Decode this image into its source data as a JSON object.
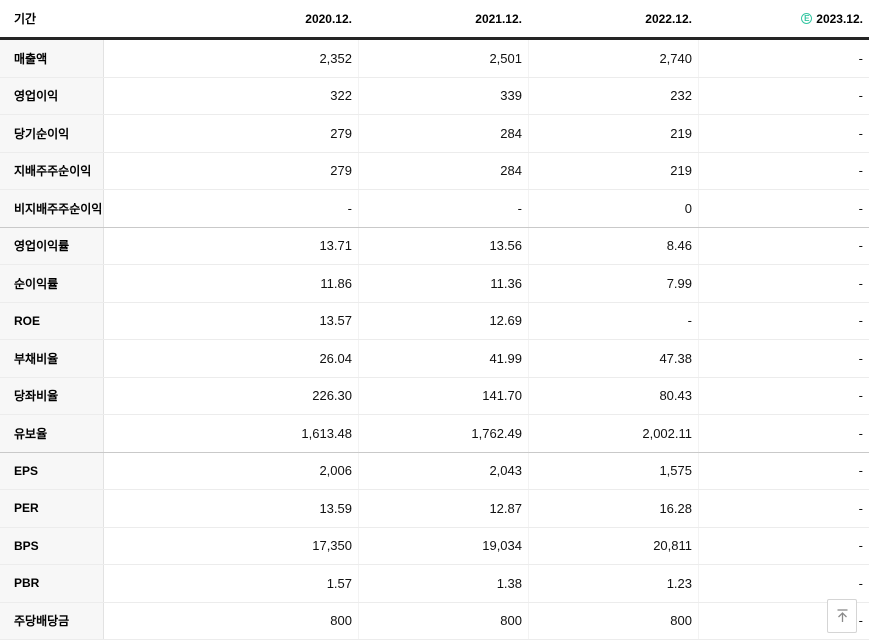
{
  "header": {
    "period_label": "기간",
    "estimate_badge": "E",
    "columns": [
      {
        "label": "2020.12.",
        "estimate": false
      },
      {
        "label": "2021.12.",
        "estimate": false
      },
      {
        "label": "2022.12.",
        "estimate": false
      },
      {
        "label": "2023.12.",
        "estimate": true
      }
    ]
  },
  "table": {
    "rows": [
      {
        "label": "매출액",
        "values": [
          "2,352",
          "2,501",
          "2,740",
          "-"
        ],
        "group_end": false
      },
      {
        "label": "영업이익",
        "values": [
          "322",
          "339",
          "232",
          "-"
        ],
        "group_end": false
      },
      {
        "label": "당기순이익",
        "values": [
          "279",
          "284",
          "219",
          "-"
        ],
        "group_end": false
      },
      {
        "label": "지배주주순이익",
        "values": [
          "279",
          "284",
          "219",
          "-"
        ],
        "group_end": false
      },
      {
        "label": "비지배주주순이익",
        "values": [
          "-",
          "-",
          "0",
          "-"
        ],
        "group_end": true
      },
      {
        "label": "영업이익률",
        "values": [
          "13.71",
          "13.56",
          "8.46",
          "-"
        ],
        "group_end": false
      },
      {
        "label": "순이익률",
        "values": [
          "11.86",
          "11.36",
          "7.99",
          "-"
        ],
        "group_end": false
      },
      {
        "label": "ROE",
        "values": [
          "13.57",
          "12.69",
          "-",
          "-"
        ],
        "group_end": false
      },
      {
        "label": "부채비율",
        "values": [
          "26.04",
          "41.99",
          "47.38",
          "-"
        ],
        "group_end": false
      },
      {
        "label": "당좌비율",
        "values": [
          "226.30",
          "141.70",
          "80.43",
          "-"
        ],
        "group_end": false
      },
      {
        "label": "유보율",
        "values": [
          "1,613.48",
          "1,762.49",
          "2,002.11",
          "-"
        ],
        "group_end": true
      },
      {
        "label": "EPS",
        "values": [
          "2,006",
          "2,043",
          "1,575",
          "-"
        ],
        "group_end": false
      },
      {
        "label": "PER",
        "values": [
          "13.59",
          "12.87",
          "16.28",
          "-"
        ],
        "group_end": false
      },
      {
        "label": "BPS",
        "values": [
          "17,350",
          "19,034",
          "20,811",
          "-"
        ],
        "group_end": false
      },
      {
        "label": "PBR",
        "values": [
          "1.57",
          "1.38",
          "1.23",
          "-"
        ],
        "group_end": false
      },
      {
        "label": "주당배당금",
        "values": [
          "800",
          "800",
          "800",
          "-"
        ],
        "group_end": false
      }
    ]
  },
  "colors": {
    "estimate_green": "#35c6a2",
    "header_border": "#252525",
    "label_bg": "#f7f7f7",
    "row_border": "#ececec",
    "group_border": "#c9c9c9"
  },
  "scroll_top": {
    "icon": "arrow-to-top"
  }
}
